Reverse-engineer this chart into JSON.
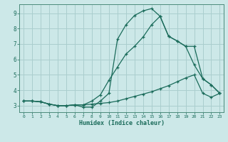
{
  "xlabel": "Humidex (Indice chaleur)",
  "background_color": "#cce8e8",
  "grid_color": "#aacece",
  "line_color": "#1a6b5a",
  "xlim": [
    -0.5,
    23.5
  ],
  "ylim": [
    2.6,
    9.6
  ],
  "xticks": [
    0,
    1,
    2,
    3,
    4,
    5,
    6,
    7,
    8,
    9,
    10,
    11,
    12,
    13,
    14,
    15,
    16,
    17,
    18,
    19,
    20,
    21,
    22,
    23
  ],
  "yticks": [
    3,
    4,
    5,
    6,
    7,
    8,
    9
  ],
  "line1_x": [
    0,
    1,
    2,
    3,
    4,
    5,
    6,
    7,
    8,
    9,
    10,
    11,
    12,
    13,
    14,
    15,
    16,
    17,
    18,
    19,
    20,
    21,
    22,
    23
  ],
  "line1_y": [
    3.3,
    3.3,
    3.25,
    3.1,
    3.0,
    3.0,
    3.05,
    3.05,
    3.1,
    3.15,
    3.2,
    3.3,
    3.45,
    3.6,
    3.75,
    3.9,
    4.1,
    4.3,
    4.55,
    4.8,
    5.0,
    3.8,
    3.55,
    3.8
  ],
  "line2_x": [
    0,
    1,
    2,
    3,
    4,
    5,
    6,
    7,
    8,
    9,
    10,
    11,
    12,
    13,
    14,
    15,
    16,
    17,
    18,
    19,
    20,
    21,
    22,
    23
  ],
  "line2_y": [
    3.3,
    3.3,
    3.25,
    3.1,
    3.0,
    3.0,
    3.05,
    3.05,
    3.3,
    3.7,
    4.65,
    5.5,
    6.35,
    6.85,
    7.45,
    8.25,
    8.8,
    7.5,
    7.2,
    6.85,
    6.85,
    4.75,
    4.35,
    3.8
  ],
  "line3_x": [
    0,
    1,
    2,
    3,
    4,
    5,
    6,
    7,
    8,
    9,
    10,
    11,
    12,
    13,
    14,
    15,
    16,
    17,
    18,
    19,
    20,
    21,
    22,
    23
  ],
  "line3_y": [
    3.3,
    3.3,
    3.25,
    3.1,
    3.0,
    3.0,
    3.05,
    2.9,
    2.9,
    3.3,
    3.8,
    7.3,
    8.25,
    8.85,
    9.15,
    9.3,
    8.8,
    7.5,
    7.2,
    6.85,
    5.65,
    4.75,
    4.35,
    3.8
  ]
}
